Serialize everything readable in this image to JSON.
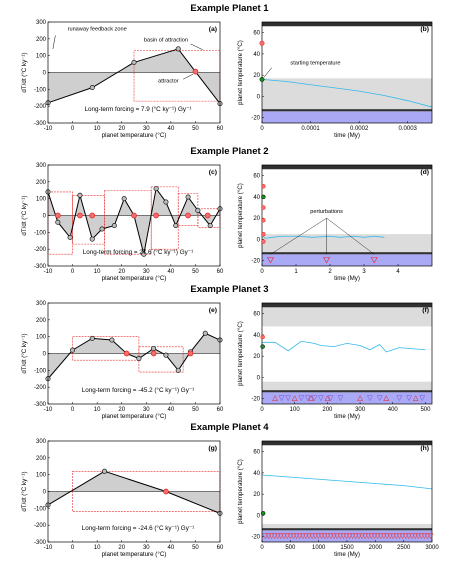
{
  "titles": [
    "Example Planet 1",
    "Example Planet 2",
    "Example Planet 3",
    "Example Planet 4"
  ],
  "colors": {
    "gray": "#cfcfcf",
    "lightgray": "#dcdcdc",
    "purple": "#a9a9f5",
    "dark": "#303030",
    "cyan": "#34b9ec",
    "red": "#ee2222",
    "green": "#1b8f1b",
    "box": "#e82a2a"
  },
  "chart_data": [
    {
      "type": "line",
      "panel_label": "(a)",
      "xlabel": "planet temperature (°C)",
      "ylabel": "dT/dt (°C ky⁻¹)",
      "xlim": [
        -10,
        60
      ],
      "ylim": [
        -300,
        300
      ],
      "xticks": [
        -10,
        0,
        10,
        20,
        30,
        40,
        50,
        60
      ],
      "yticks": [
        -300,
        -200,
        -100,
        0,
        100,
        200,
        300
      ],
      "x": [
        -10,
        8,
        25,
        43,
        50,
        60
      ],
      "y": [
        -180,
        -90,
        60,
        140,
        5,
        -185
      ],
      "attractors": [
        [
          50,
          5
        ]
      ],
      "forcing_text": "Long-term forcing = 7.9 (°C ky⁻¹) Gy⁻¹",
      "annotations": [
        "runaway feedback zone",
        "basin of attraction",
        "attractor"
      ],
      "basin_boxes": [
        [
          25,
          60,
          -170,
          130
        ]
      ]
    },
    {
      "type": "line",
      "panel_label": "(b)",
      "xlabel": "time (My)",
      "ylabel": "planet temperature (°C)",
      "xlim": [
        0,
        0.00035
      ],
      "ylim": [
        -25,
        70
      ],
      "xticks": [
        0,
        0.0001,
        0.0002,
        0.0003
      ],
      "xticklabels": [
        "0",
        "0.0001",
        "0.0002",
        "0.0003"
      ],
      "yticks": [
        -20,
        0,
        20,
        40,
        60
      ],
      "x": [
        0,
        5e-05,
        0.0001,
        0.00015,
        0.0002,
        0.00025,
        0.0003,
        0.00035
      ],
      "y": [
        16,
        14,
        11,
        8,
        5,
        1,
        -4,
        -10
      ],
      "start_temperature": 16,
      "annotations": [
        "starting temperature"
      ]
    },
    {
      "type": "line",
      "panel_label": "(c)",
      "xlabel": "planet temperature (°C)",
      "ylabel": "dT/dt (°C ky⁻¹)",
      "xlim": [
        -10,
        60
      ],
      "ylim": [
        -300,
        300
      ],
      "xticks": [
        -10,
        0,
        10,
        20,
        30,
        40,
        50,
        60
      ],
      "yticks": [
        -300,
        -200,
        -100,
        0,
        100,
        200,
        300
      ],
      "x": [
        -10,
        -6,
        -1,
        3,
        8,
        12,
        17,
        21,
        25,
        29,
        34,
        38,
        42,
        47,
        51,
        56,
        60
      ],
      "y": [
        140,
        -40,
        -130,
        120,
        -140,
        -80,
        -60,
        100,
        0,
        -230,
        160,
        80,
        -60,
        110,
        30,
        -60,
        40
      ],
      "attractors": [
        [
          -6,
          0
        ],
        [
          3,
          0
        ],
        [
          8,
          0
        ],
        [
          25,
          0
        ],
        [
          34,
          0
        ],
        [
          47,
          0
        ],
        [
          55,
          0
        ]
      ],
      "forcing_text": "Long-term forcing = 27.6 (°C ky⁻¹) Gy⁻¹",
      "basin_boxes": [
        [
          -10,
          0,
          -230,
          140
        ],
        [
          0,
          13,
          -170,
          120
        ],
        [
          13,
          32,
          -230,
          150
        ],
        [
          32,
          43,
          -200,
          170
        ],
        [
          43,
          51,
          -60,
          130
        ],
        [
          51,
          60,
          -70,
          40
        ]
      ]
    },
    {
      "type": "line",
      "panel_label": "(d)",
      "xlabel": "time (My)",
      "ylabel": "planet temperature (°C)",
      "xlim": [
        0,
        5
      ],
      "ylim": [
        -25,
        70
      ],
      "xticks": [
        0,
        1,
        2,
        3,
        4
      ],
      "yticks": [
        -20,
        0,
        20,
        40,
        60
      ],
      "x": [
        0,
        0.1,
        0.3,
        0.6,
        1.0,
        1.5,
        2.0,
        2.3,
        2.7,
        3.0,
        3.3,
        3.6
      ],
      "y": [
        4,
        1,
        2,
        3,
        3,
        2,
        3,
        2,
        3,
        2,
        3,
        2
      ],
      "annotations": [
        "perturbations"
      ],
      "perturbation_times": [
        0.25,
        1.9,
        3.3
      ]
    },
    {
      "type": "line",
      "panel_label": "(e)",
      "xlabel": "planet temperature (°C)",
      "ylabel": "dT/dt (°C ky⁻¹)",
      "xlim": [
        -10,
        60
      ],
      "ylim": [
        -300,
        300
      ],
      "xticks": [
        -10,
        0,
        10,
        20,
        30,
        40,
        50,
        60
      ],
      "yticks": [
        -300,
        -200,
        -100,
        0,
        100,
        200,
        300
      ],
      "x": [
        -10,
        0,
        8,
        16,
        22,
        27,
        33,
        38,
        43,
        48,
        54,
        60
      ],
      "y": [
        -150,
        20,
        90,
        80,
        0,
        -30,
        30,
        -10,
        -100,
        10,
        120,
        80
      ],
      "attractors": [
        [
          22,
          0
        ],
        [
          33,
          0
        ],
        [
          48,
          0
        ]
      ],
      "forcing_text": "Long-term forcing = -45.2 (°C ky⁻¹) Gy⁻¹",
      "basin_boxes": [
        [
          0,
          27,
          -40,
          100
        ],
        [
          27,
          45,
          -110,
          40
        ]
      ]
    },
    {
      "type": "line",
      "panel_label": "(f)",
      "xlabel": "time (My)",
      "ylabel": "planet temperature (°C)",
      "xlim": [
        0,
        520
      ],
      "ylim": [
        -25,
        70
      ],
      "xticks": [
        0,
        100,
        200,
        300,
        400,
        500
      ],
      "yticks": [
        -20,
        0,
        20,
        40,
        60
      ],
      "x": [
        0,
        40,
        80,
        120,
        160,
        180,
        220,
        260,
        300,
        330,
        360,
        380,
        420,
        460,
        500
      ],
      "y": [
        33,
        33,
        25,
        34,
        32,
        30,
        29,
        32,
        30,
        26,
        31,
        24,
        28,
        27,
        26
      ]
    },
    {
      "type": "line",
      "panel_label": "(g)",
      "xlabel": "planet temperature (°C)",
      "ylabel": "dT/dt (°C ky⁻¹)",
      "xlim": [
        -10,
        60
      ],
      "ylim": [
        -300,
        300
      ],
      "xticks": [
        -10,
        0,
        10,
        20,
        30,
        40,
        50,
        60
      ],
      "yticks": [
        -300,
        -200,
        -100,
        0,
        100,
        200,
        300
      ],
      "x": [
        -10,
        13,
        38,
        60
      ],
      "y": [
        -80,
        120,
        0,
        -130
      ],
      "attractors": [
        [
          38,
          0
        ]
      ],
      "forcing_text": "Long-term forcing = -24.6 (°C ky⁻¹) Gy⁻¹",
      "basin_boxes": [
        [
          0,
          60,
          -120,
          120
        ]
      ]
    },
    {
      "type": "line",
      "panel_label": "(h)",
      "xlabel": "time (My)",
      "ylabel": "planet temperature (°C)",
      "xlim": [
        0,
        3000
      ],
      "ylim": [
        -25,
        70
      ],
      "xticks": [
        0,
        500,
        1000,
        1500,
        2000,
        2500,
        3000
      ],
      "yticks": [
        -20,
        0,
        20,
        40,
        60
      ],
      "x": [
        0,
        500,
        1000,
        1500,
        2000,
        2500,
        3000
      ],
      "y": [
        38,
        36,
        34,
        32,
        30,
        28,
        25
      ]
    }
  ]
}
